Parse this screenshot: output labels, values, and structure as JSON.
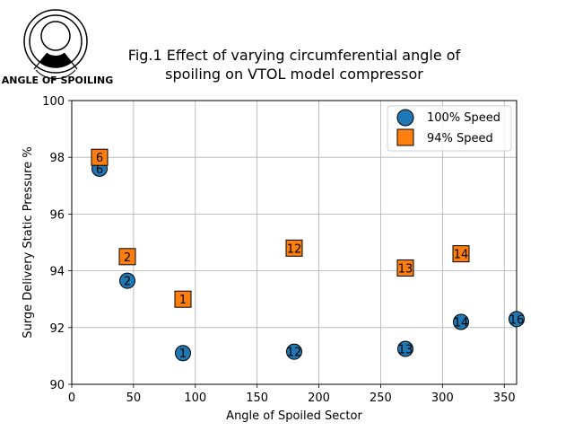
{
  "logo": {
    "caption": "ANGLE OF SPOILING"
  },
  "chart_data": {
    "type": "scatter",
    "title_lines": [
      "Fig.1 Effect of varying circumferential angle of",
      "spoiling on VTOL model compressor"
    ],
    "xlabel": "Angle of Spoiled Sector",
    "ylabel": "Surge Delivery Static Pressure %",
    "xlim": [
      0,
      360
    ],
    "ylim": [
      90,
      100
    ],
    "xticks": [
      0,
      50,
      100,
      150,
      200,
      250,
      300,
      350
    ],
    "yticks": [
      90,
      92,
      94,
      96,
      98,
      100
    ],
    "grid": true,
    "legend_position": "top-right",
    "series": [
      {
        "name": "100% Speed",
        "marker": "circle",
        "color": "#1f77b4",
        "points": [
          {
            "x": 22.5,
            "y": 97.6,
            "label": "6"
          },
          {
            "x": 45,
            "y": 93.65,
            "label": "2"
          },
          {
            "x": 90,
            "y": 91.1,
            "label": "1"
          },
          {
            "x": 180,
            "y": 91.15,
            "label": "12"
          },
          {
            "x": 270,
            "y": 91.25,
            "label": "13"
          },
          {
            "x": 315,
            "y": 92.2,
            "label": "14"
          },
          {
            "x": 360,
            "y": 92.3,
            "label": "16"
          }
        ]
      },
      {
        "name": "94% Speed",
        "marker": "square",
        "color": "#ff7f0e",
        "points": [
          {
            "x": 22.5,
            "y": 98.0,
            "label": "6"
          },
          {
            "x": 45,
            "y": 94.5,
            "label": "2"
          },
          {
            "x": 90,
            "y": 93.0,
            "label": "1"
          },
          {
            "x": 180,
            "y": 94.8,
            "label": "12"
          },
          {
            "x": 270,
            "y": 94.1,
            "label": "13"
          },
          {
            "x": 315,
            "y": 94.6,
            "label": "14"
          }
        ]
      }
    ]
  }
}
